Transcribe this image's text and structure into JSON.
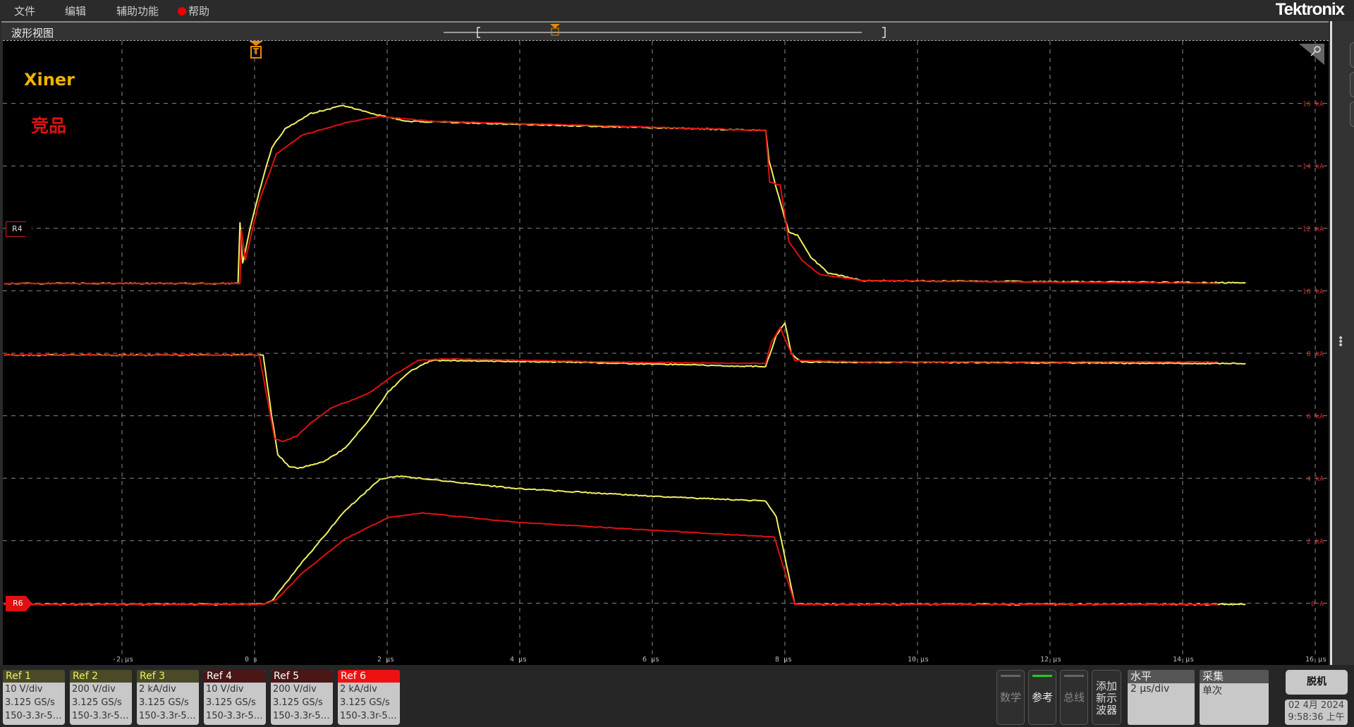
{
  "menu": {
    "file": "文件",
    "edit": "编辑",
    "utility": "辅助功能",
    "help": "帮助"
  },
  "logo": "Tektronix",
  "waveview": {
    "title": "波形视图",
    "trigger_label": "T"
  },
  "annotations": {
    "xiner": "Xiner",
    "competitor": "竞品",
    "colors": {
      "xiner": "#f0b400",
      "competitor": "#e01010"
    }
  },
  "markers": {
    "r4": "R4",
    "r6": "R6"
  },
  "chart_data": {
    "type": "line",
    "x_unit": "µs",
    "xlim": [
      -3.78,
      16.2
    ],
    "x_ticks": [
      "-2 µs",
      "0 s",
      "2 µs",
      "4 µs",
      "6 µs",
      "8 µs",
      "10 µs",
      "12 µs",
      "14 µs",
      "16 µs"
    ],
    "y_ticks": [
      "16 kA",
      "14 kA",
      "12 kA",
      "10 kA",
      "8 kA",
      "6 kA",
      "4 kA",
      "2 kA",
      "0 A"
    ],
    "ylim": [
      -2,
      18
    ],
    "grid": true,
    "series": [
      {
        "ref": "Ref 1",
        "color": "#f0f060",
        "points": [
          [
            -3.78,
            10.26
          ],
          [
            -0.25,
            10.26
          ],
          [
            -0.22,
            12.2
          ],
          [
            -0.18,
            10.9
          ],
          [
            -0.07,
            12.0
          ],
          [
            0.07,
            13.2
          ],
          [
            0.26,
            14.6
          ],
          [
            0.46,
            15.2
          ],
          [
            0.85,
            15.7
          ],
          [
            1.34,
            15.95
          ],
          [
            1.76,
            15.7
          ],
          [
            2.28,
            15.45
          ],
          [
            3.97,
            15.35
          ],
          [
            7.71,
            15.15
          ],
          [
            7.76,
            14.2
          ],
          [
            7.87,
            13.3
          ],
          [
            8.06,
            11.9
          ],
          [
            8.19,
            11.8
          ],
          [
            8.39,
            11.1
          ],
          [
            8.65,
            10.6
          ],
          [
            9.17,
            10.35
          ],
          [
            14.95,
            10.28
          ]
        ]
      },
      {
        "ref": "Ref 4",
        "color": "#e01010",
        "points": [
          [
            -3.78,
            10.26
          ],
          [
            -0.22,
            10.26
          ],
          [
            -0.2,
            12.0
          ],
          [
            -0.14,
            11.0
          ],
          [
            0.07,
            12.9
          ],
          [
            0.33,
            14.4
          ],
          [
            0.72,
            15.0
          ],
          [
            1.37,
            15.4
          ],
          [
            1.89,
            15.6
          ],
          [
            2.67,
            15.45
          ],
          [
            5.27,
            15.3
          ],
          [
            7.71,
            15.15
          ],
          [
            7.77,
            13.5
          ],
          [
            7.93,
            13.4
          ],
          [
            8.06,
            11.6
          ],
          [
            8.26,
            11.0
          ],
          [
            8.52,
            10.55
          ],
          [
            9.17,
            10.35
          ],
          [
            14.53,
            10.26
          ]
        ]
      },
      {
        "ref": "Ref 2",
        "color": "#f0f060",
        "points": [
          [
            -3.78,
            7.97
          ],
          [
            0.13,
            7.97
          ],
          [
            0.26,
            6.0
          ],
          [
            0.35,
            4.8
          ],
          [
            0.52,
            4.4
          ],
          [
            0.65,
            4.35
          ],
          [
            1.04,
            4.55
          ],
          [
            1.37,
            5.0
          ],
          [
            1.69,
            5.8
          ],
          [
            2.02,
            6.8
          ],
          [
            2.34,
            7.45
          ],
          [
            2.67,
            7.8
          ],
          [
            4.62,
            7.75
          ],
          [
            7.71,
            7.6
          ],
          [
            7.87,
            8.6
          ],
          [
            8.0,
            9.0
          ],
          [
            8.1,
            8.0
          ],
          [
            8.26,
            7.75
          ],
          [
            14.95,
            7.7
          ]
        ]
      },
      {
        "ref": "Ref 5",
        "color": "#e01010",
        "points": [
          [
            -3.78,
            7.97
          ],
          [
            0.07,
            7.97
          ],
          [
            0.2,
            6.5
          ],
          [
            0.3,
            5.3
          ],
          [
            0.43,
            5.2
          ],
          [
            0.65,
            5.4
          ],
          [
            0.85,
            5.8
          ],
          [
            1.17,
            6.3
          ],
          [
            1.5,
            6.55
          ],
          [
            1.76,
            6.8
          ],
          [
            2.08,
            7.3
          ],
          [
            2.47,
            7.8
          ],
          [
            2.93,
            7.85
          ],
          [
            5.27,
            7.75
          ],
          [
            7.71,
            7.7
          ],
          [
            7.8,
            8.4
          ],
          [
            7.93,
            8.85
          ],
          [
            8.06,
            8.2
          ],
          [
            8.15,
            7.8
          ],
          [
            9.17,
            7.75
          ],
          [
            14.53,
            7.75
          ]
        ]
      },
      {
        "ref": "Ref 3",
        "color": "#f0f060",
        "points": [
          [
            -3.78,
            0
          ],
          [
            0.13,
            0
          ],
          [
            0.26,
            0.1
          ],
          [
            0.72,
            1.35
          ],
          [
            1.37,
            3.0
          ],
          [
            1.89,
            4.0
          ],
          [
            2.15,
            4.1
          ],
          [
            3.97,
            3.7
          ],
          [
            6.05,
            3.45
          ],
          [
            7.71,
            3.3
          ],
          [
            7.87,
            2.8
          ],
          [
            8.15,
            0
          ],
          [
            14.95,
            0
          ]
        ]
      },
      {
        "ref": "Ref 6",
        "color": "#e01010",
        "points": [
          [
            -3.78,
            0
          ],
          [
            0.13,
            0
          ],
          [
            0.33,
            0.15
          ],
          [
            0.72,
            1.0
          ],
          [
            1.37,
            2.1
          ],
          [
            2.02,
            2.78
          ],
          [
            2.54,
            2.92
          ],
          [
            3.97,
            2.62
          ],
          [
            6.57,
            2.3
          ],
          [
            7.84,
            2.15
          ],
          [
            8.15,
            0
          ],
          [
            14.53,
            0
          ]
        ]
      }
    ]
  },
  "refs": [
    {
      "name": "Ref 1",
      "scale": "10 V/div",
      "rate": "3.125 GS/s",
      "src": "150-3.3r-5…",
      "hdr": "#4a4a28",
      "fg": "#f0f060"
    },
    {
      "name": "Ref 2",
      "scale": "200 V/div",
      "rate": "3.125 GS/s",
      "src": "150-3.3r-5…",
      "hdr": "#4a4a28",
      "fg": "#f0f060"
    },
    {
      "name": "Ref 3",
      "scale": "2 kA/div",
      "rate": "3.125 GS/s",
      "src": "150-3.3r-5…",
      "hdr": "#4a4a28",
      "fg": "#f0f060"
    },
    {
      "name": "Ref 4",
      "scale": "10 V/div",
      "rate": "3.125 GS/s",
      "src": "150-3.3r-5…",
      "hdr": "#4a1616",
      "fg": "#ffffff"
    },
    {
      "name": "Ref 5",
      "scale": "200 V/div",
      "rate": "3.125 GS/s",
      "src": "150-3.3r-5…",
      "hdr": "#4a1616",
      "fg": "#ffffff"
    },
    {
      "name": "Ref 6",
      "scale": "2 kA/div",
      "rate": "3.125 GS/s",
      "src": "150-3.3r-5…",
      "hdr": "#ee1111",
      "fg": "#ffffff"
    }
  ],
  "controls": {
    "math": "数学",
    "ref": "参考",
    "bus": "总线",
    "add_scope": "添加新示波器",
    "horizontal": {
      "title": "水平",
      "value": "2 µs/div"
    },
    "acquire": {
      "title": "采集",
      "value": "单次"
    },
    "offline": "脱机",
    "date": "02 4月 2024",
    "time": "9:58:36 上午"
  }
}
